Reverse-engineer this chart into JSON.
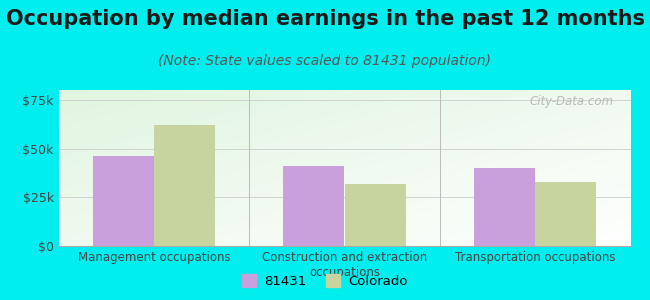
{
  "title": "Occupation by median earnings in the past 12 months",
  "subtitle": "(Note: State values scaled to 81431 population)",
  "categories": [
    "Management occupations",
    "Construction and extraction\noccupations",
    "Transportation occupations"
  ],
  "values_81431": [
    46000,
    41000,
    40000
  ],
  "values_colorado": [
    62000,
    32000,
    33000
  ],
  "bar_color_81431": "#c9a0dc",
  "bar_color_colorado": "#c8d4a0",
  "background_color": "#00eeee",
  "ylim": [
    0,
    80000
  ],
  "yticks": [
    0,
    25000,
    50000,
    75000
  ],
  "ytick_labels": [
    "$0",
    "$25k",
    "$50k",
    "$75k"
  ],
  "legend_label_81431": "81431",
  "legend_label_colorado": "Colorado",
  "title_fontsize": 15,
  "subtitle_fontsize": 10,
  "watermark": "City-Data.com"
}
